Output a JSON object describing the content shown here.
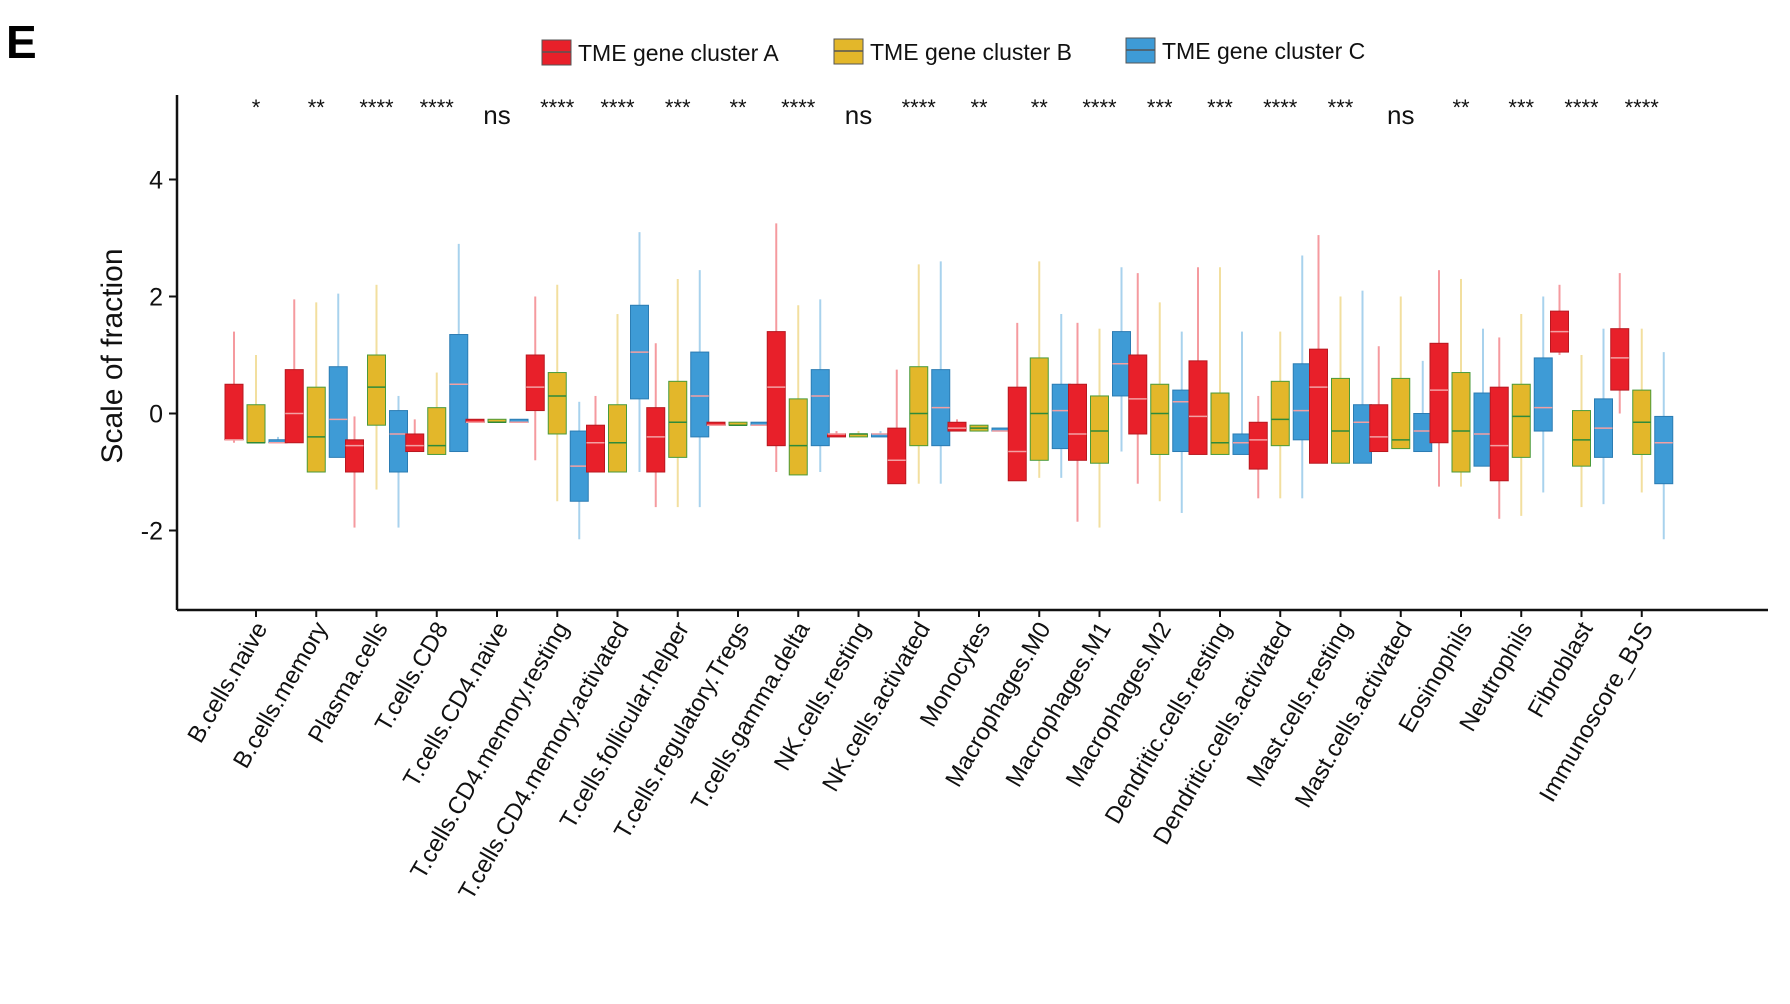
{
  "panel_label": "E",
  "chart_data": {
    "type": "box",
    "title": "",
    "xlabel": "",
    "ylabel": "Scale of fraction",
    "ylim": [
      -3.3,
      5.5
    ],
    "yticks": [
      -2,
      0,
      2,
      4
    ],
    "grid": false,
    "legend_position": "top",
    "series": [
      {
        "name": "TME gene cluster A",
        "color": "#E8202A"
      },
      {
        "name": "TME gene cluster B",
        "color": "#E3B72A"
      },
      {
        "name": "TME gene cluster C",
        "color": "#3E9BD6"
      }
    ],
    "categories": [
      "B.cells.naive",
      "B.cells.memory",
      "Plasma.cells",
      "T.cells.CD8",
      "T.cells.CD4.naive",
      "T.cells.CD4.memory.resting",
      "T.cells.CD4.memory.activated",
      "T.cells.follicular.helper",
      "T.cells.regulatory.Tregs",
      "T.cells.gamma.delta",
      "NK.cells.resting",
      "NK.cells.activated",
      "Monocytes",
      "Macrophages.M0",
      "Macrophages.M1",
      "Macrophages.M2",
      "Dendritic.cells.resting",
      "Dendritic.cells.activated",
      "Mast.cells.resting",
      "Mast.cells.activated",
      "Eosinophils",
      "Neutrophils",
      "Fibroblast",
      "Immunoscore_BJS"
    ],
    "significance": [
      "*",
      "**",
      "****",
      "****",
      "ns",
      "****",
      "****",
      "***",
      "**",
      "****",
      "ns",
      "****",
      "**",
      "**",
      "****",
      "***",
      "***",
      "****",
      "***",
      "ns",
      "**",
      "***",
      "****",
      "****"
    ],
    "boxes": [
      [
        [
          -0.5,
          -0.45,
          -0.45,
          0.5,
          1.4
        ],
        [
          -0.5,
          -0.5,
          -0.5,
          0.15,
          1.0
        ],
        [
          -0.5,
          -0.5,
          -0.5,
          -0.45,
          -0.4
        ]
      ],
      [
        [
          -0.5,
          -0.5,
          0.0,
          0.75,
          1.95
        ],
        [
          -1.0,
          -1.0,
          -0.4,
          0.45,
          1.9
        ],
        [
          -0.75,
          -0.75,
          -0.1,
          0.8,
          2.05
        ]
      ],
      [
        [
          -1.95,
          -1.0,
          -0.55,
          -0.45,
          -0.05
        ],
        [
          -1.3,
          -0.2,
          0.45,
          1.0,
          2.2
        ],
        [
          -1.95,
          -1.0,
          -0.35,
          0.05,
          0.3
        ]
      ],
      [
        [
          -0.65,
          -0.65,
          -0.55,
          -0.35,
          -0.1
        ],
        [
          -0.7,
          -0.7,
          -0.55,
          0.1,
          0.7
        ],
        [
          -0.65,
          -0.65,
          0.5,
          1.35,
          2.9
        ]
      ],
      [
        [
          -0.15,
          -0.15,
          -0.15,
          -0.15,
          -0.15
        ],
        [
          -0.15,
          -0.15,
          -0.15,
          -0.15,
          -0.15
        ],
        [
          -0.15,
          -0.15,
          -0.15,
          -0.15,
          -0.15
        ]
      ],
      [
        [
          -0.8,
          0.05,
          0.45,
          1.0,
          2.0
        ],
        [
          -1.5,
          -0.35,
          0.3,
          0.7,
          2.2
        ],
        [
          -2.15,
          -1.5,
          -0.9,
          -0.3,
          0.2
        ]
      ],
      [
        [
          -1.0,
          -1.0,
          -0.5,
          -0.2,
          0.3
        ],
        [
          -1.0,
          -1.0,
          -0.5,
          0.15,
          1.7
        ],
        [
          -1.0,
          0.25,
          1.05,
          1.85,
          3.1
        ]
      ],
      [
        [
          -1.6,
          -1.0,
          -0.4,
          0.1,
          1.2
        ],
        [
          -1.6,
          -0.75,
          -0.15,
          0.55,
          2.3
        ],
        [
          -1.6,
          -0.4,
          0.3,
          1.05,
          2.45
        ]
      ],
      [
        [
          -0.2,
          -0.2,
          -0.2,
          -0.2,
          -0.2
        ],
        [
          -0.2,
          -0.2,
          -0.2,
          -0.2,
          -0.2
        ],
        [
          -0.2,
          -0.2,
          -0.2,
          -0.2,
          -0.2
        ]
      ],
      [
        [
          -1.0,
          -0.55,
          0.45,
          1.4,
          3.25
        ],
        [
          -1.05,
          -1.05,
          -0.55,
          0.25,
          1.85
        ],
        [
          -1.0,
          -0.55,
          0.3,
          0.75,
          1.95
        ]
      ],
      [
        [
          -0.4,
          -0.4,
          -0.35,
          -0.35,
          -0.3
        ],
        [
          -0.4,
          -0.4,
          -0.35,
          -0.35,
          -0.3
        ],
        [
          -0.4,
          -0.4,
          -0.35,
          -0.35,
          -0.3
        ]
      ],
      [
        [
          -1.2,
          -1.2,
          -0.8,
          -0.25,
          0.75
        ],
        [
          -1.2,
          -0.55,
          0.0,
          0.8,
          2.55
        ],
        [
          -1.2,
          -0.55,
          0.1,
          0.75,
          2.6
        ]
      ],
      [
        [
          -0.3,
          -0.3,
          -0.25,
          -0.15,
          -0.1
        ],
        [
          -0.3,
          -0.3,
          -0.25,
          -0.2,
          -0.2
        ],
        [
          -0.3,
          -0.3,
          -0.3,
          -0.25,
          -0.25
        ]
      ],
      [
        [
          -1.15,
          -1.15,
          -0.65,
          0.45,
          1.55
        ],
        [
          -1.1,
          -0.8,
          0.0,
          0.95,
          2.6
        ],
        [
          -1.1,
          -0.6,
          0.05,
          0.5,
          1.7
        ]
      ],
      [
        [
          -1.85,
          -0.8,
          -0.35,
          0.5,
          1.55
        ],
        [
          -1.95,
          -0.85,
          -0.3,
          0.3,
          1.45
        ],
        [
          -0.65,
          0.3,
          0.85,
          1.4,
          2.5
        ]
      ],
      [
        [
          -1.2,
          -0.35,
          0.25,
          1.0,
          2.4
        ],
        [
          -1.5,
          -0.7,
          0.0,
          0.5,
          1.9
        ],
        [
          -1.7,
          -0.65,
          0.2,
          0.4,
          1.4
        ]
      ],
      [
        [
          -0.7,
          -0.7,
          -0.05,
          0.9,
          2.5
        ],
        [
          -0.7,
          -0.7,
          -0.5,
          0.35,
          2.5
        ],
        [
          -0.7,
          -0.7,
          -0.5,
          -0.35,
          1.4
        ]
      ],
      [
        [
          -1.45,
          -0.95,
          -0.45,
          -0.15,
          0.3
        ],
        [
          -1.45,
          -0.55,
          -0.1,
          0.55,
          1.4
        ],
        [
          -1.45,
          -0.45,
          0.05,
          0.85,
          2.7
        ]
      ],
      [
        [
          -0.85,
          -0.85,
          0.45,
          1.1,
          3.05
        ],
        [
          -0.85,
          -0.85,
          -0.3,
          0.6,
          2.0
        ],
        [
          -0.85,
          -0.85,
          -0.15,
          0.15,
          2.1
        ]
      ],
      [
        [
          -0.65,
          -0.65,
          -0.4,
          0.15,
          1.15
        ],
        [
          -0.6,
          -0.6,
          -0.45,
          0.6,
          2.0
        ],
        [
          -0.65,
          -0.65,
          -0.3,
          0.0,
          0.9
        ]
      ],
      [
        [
          -1.25,
          -0.5,
          0.4,
          1.2,
          2.45
        ],
        [
          -1.25,
          -1.0,
          -0.3,
          0.7,
          2.3
        ],
        [
          -0.9,
          -0.9,
          -0.35,
          0.35,
          1.45
        ]
      ],
      [
        [
          -1.8,
          -1.15,
          -0.55,
          0.45,
          1.3
        ],
        [
          -1.75,
          -0.75,
          -0.05,
          0.5,
          1.7
        ],
        [
          -1.35,
          -0.3,
          0.1,
          0.95,
          2.0
        ]
      ],
      [
        [
          1.0,
          1.05,
          1.4,
          1.75,
          2.2
        ],
        [
          -1.6,
          -0.9,
          -0.45,
          0.05,
          1.0
        ],
        [
          -1.55,
          -0.75,
          -0.25,
          0.25,
          1.45
        ]
      ],
      [
        [
          0.0,
          0.4,
          0.95,
          1.45,
          2.4
        ],
        [
          -1.35,
          -0.7,
          -0.15,
          0.4,
          1.45
        ],
        [
          -2.15,
          -1.2,
          -0.5,
          -0.05,
          1.05
        ]
      ]
    ]
  }
}
